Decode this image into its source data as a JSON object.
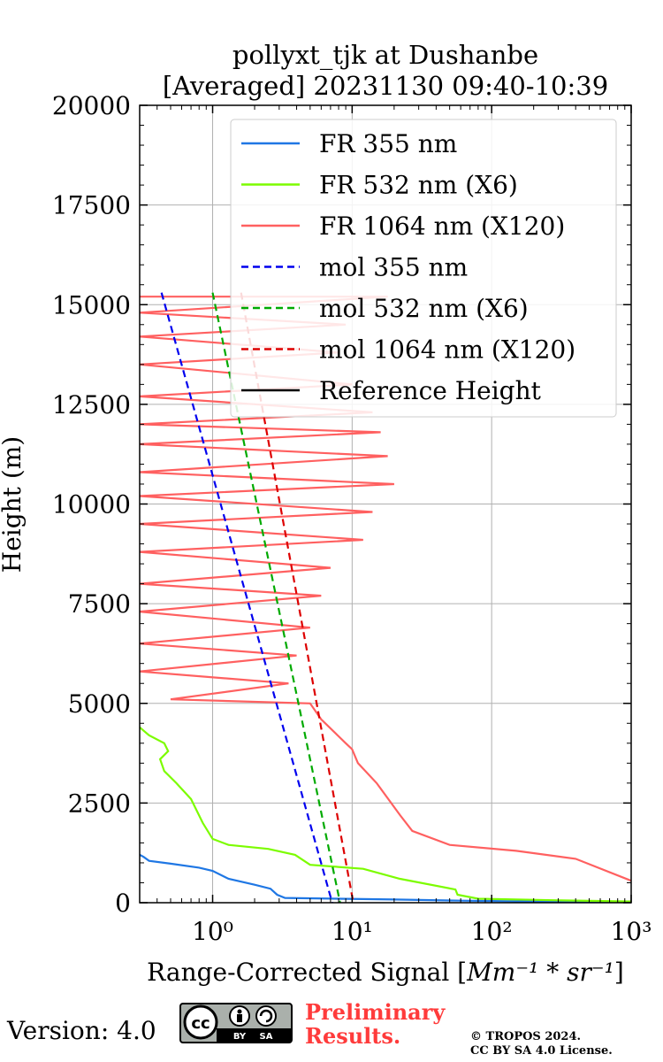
{
  "chart_data": {
    "type": "line",
    "title_line1": "pollyxt_tjk at Dushanbe",
    "title_line2": "[Averaged] 20231130 09:40-10:39",
    "xlabel_text": "Range-Corrected Signal [",
    "xlabel_units": "Mm⁻¹ * sr⁻¹",
    "xlabel_close": "]",
    "ylabel": "Height (m)",
    "xscale": "log",
    "xlim": [
      0.3,
      1000
    ],
    "ylim": [
      0,
      20000
    ],
    "grid": true,
    "legend_position": "top-right",
    "x_ticks": [
      {
        "value": 1,
        "label": "10⁰"
      },
      {
        "value": 10,
        "label": "10¹"
      },
      {
        "value": 100,
        "label": "10²"
      },
      {
        "value": 1000,
        "label": "10³"
      }
    ],
    "y_ticks": [
      0,
      2500,
      5000,
      7500,
      10000,
      12500,
      15000,
      17500,
      20000
    ],
    "series": [
      {
        "name": "FR 355 nm",
        "color": "#1f77e4",
        "style": "solid",
        "points": [
          [
            0.3,
            1200
          ],
          [
            0.32,
            1150
          ],
          [
            0.35,
            1050
          ],
          [
            0.5,
            980
          ],
          [
            0.8,
            880
          ],
          [
            1.0,
            800
          ],
          [
            1.3,
            600
          ],
          [
            2.0,
            450
          ],
          [
            2.6,
            350
          ],
          [
            2.9,
            200
          ],
          [
            3.3,
            120
          ],
          [
            8,
            100
          ],
          [
            20,
            80
          ],
          [
            60,
            50
          ],
          [
            200,
            30
          ],
          [
            1000,
            20
          ]
        ]
      },
      {
        "name": "FR 532 nm (X6)",
        "color": "#7cfc00",
        "style": "solid",
        "points": [
          [
            0.3,
            4400
          ],
          [
            0.35,
            4200
          ],
          [
            0.45,
            4000
          ],
          [
            0.48,
            3800
          ],
          [
            0.42,
            3600
          ],
          [
            0.45,
            3300
          ],
          [
            0.55,
            3000
          ],
          [
            0.7,
            2600
          ],
          [
            0.85,
            2000
          ],
          [
            1.0,
            1600
          ],
          [
            1.3,
            1450
          ],
          [
            2.5,
            1350
          ],
          [
            3.9,
            1200
          ],
          [
            5,
            950
          ],
          [
            12,
            850
          ],
          [
            22,
            600
          ],
          [
            55,
            330
          ],
          [
            57,
            200
          ],
          [
            80,
            100
          ],
          [
            300,
            60
          ],
          [
            1000,
            30
          ]
        ]
      },
      {
        "name": "FR 1064 nm (X120)",
        "color": "#ff6060",
        "style": "solid",
        "points": [
          [
            0.3,
            15200
          ],
          [
            18,
            15200
          ],
          [
            0.3,
            14800
          ],
          [
            9,
            14500
          ],
          [
            0.3,
            14200
          ],
          [
            8,
            13800
          ],
          [
            0.3,
            13500
          ],
          [
            10,
            13000
          ],
          [
            0.3,
            12700
          ],
          [
            14,
            12300
          ],
          [
            0.3,
            12000
          ],
          [
            16,
            11800
          ],
          [
            0.3,
            11500
          ],
          [
            18,
            11200
          ],
          [
            0.3,
            10800
          ],
          [
            20,
            10500
          ],
          [
            0.3,
            10200
          ],
          [
            14,
            9800
          ],
          [
            0.3,
            9500
          ],
          [
            12,
            9100
          ],
          [
            0.3,
            8800
          ],
          [
            7,
            8400
          ],
          [
            0.3,
            8000
          ],
          [
            6,
            7700
          ],
          [
            0.3,
            7300
          ],
          [
            5,
            6900
          ],
          [
            0.3,
            6500
          ],
          [
            4,
            6200
          ],
          [
            0.3,
            5800
          ],
          [
            3.5,
            5500
          ],
          [
            0.5,
            5100
          ],
          [
            5,
            5000
          ],
          [
            6,
            4600
          ],
          [
            9,
            4000
          ],
          [
            10,
            3850
          ],
          [
            11,
            3500
          ],
          [
            15,
            3000
          ],
          [
            22,
            2200
          ],
          [
            27,
            1800
          ],
          [
            50,
            1450
          ],
          [
            150,
            1300
          ],
          [
            400,
            1100
          ],
          [
            1000,
            550
          ]
        ]
      },
      {
        "name": "mol 355 nm",
        "color": "#0000ee",
        "style": "dashed",
        "points": [
          [
            0.43,
            15300
          ],
          [
            7.2,
            0
          ]
        ]
      },
      {
        "name": "mol 532 nm (X6)",
        "color": "#00aa00",
        "style": "dashed",
        "points": [
          [
            1.0,
            15300
          ],
          [
            8.2,
            0
          ]
        ]
      },
      {
        "name": "mol 1064 nm (X120)",
        "color": "#dd0000",
        "style": "dashed",
        "points": [
          [
            1.6,
            15300
          ],
          [
            10.2,
            0
          ]
        ]
      },
      {
        "name": "Reference Height",
        "color": "#000000",
        "style": "solid",
        "points": []
      }
    ]
  },
  "footer": {
    "version": "Version: 4.0",
    "cc_label": "cc",
    "by_label": "BY",
    "sa_label": "SA",
    "prelim_line1": "Preliminary",
    "prelim_line2": "Results.",
    "copyright_line1": "© TROPOS 2024.",
    "copyright_line2": "CC BY SA 4.0 License."
  }
}
